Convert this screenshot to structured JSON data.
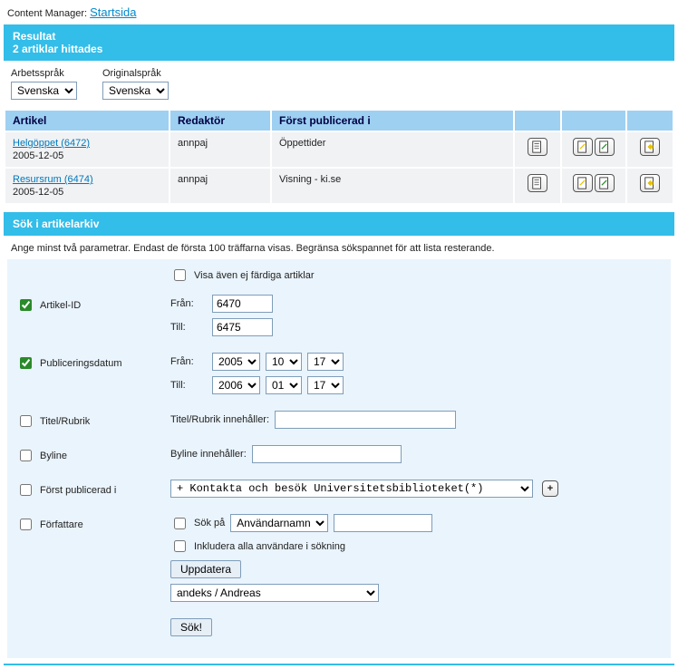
{
  "breadcrumb": {
    "prefix": "Content Manager:",
    "link": "Startsida"
  },
  "result_header": {
    "line1": "Resultat",
    "line2": "2 artiklar hittades"
  },
  "lang": {
    "work_label": "Arbetsspråk",
    "orig_label": "Originalspråk",
    "work_value": "Svenska",
    "orig_value": "Svenska"
  },
  "table": {
    "headers": {
      "artikel": "Artikel",
      "redaktor": "Redaktör",
      "forst_pub": "Först publicerad i",
      "actions1": "",
      "actions2": "",
      "actions3": ""
    },
    "rows": [
      {
        "link": "Helgöppet (6472)",
        "date": "2005-12-05",
        "editor": "annpaj",
        "pub": "Öppettider"
      },
      {
        "link": "Resursrum (6474)",
        "date": "2005-12-05",
        "editor": "annpaj",
        "pub": "Visning - ki.se"
      }
    ]
  },
  "search_header": "Sök i artikelarkiv",
  "help_text": "Ange minst två parametrar. Endast de första 100 träffarna visas. Begränsa sökspannet för att lista resterande.",
  "form": {
    "show_unfinished": "Visa även ej färdiga artiklar",
    "artikel_id_label": "Artikel-ID",
    "from_label": "Från:",
    "to_label": "Till:",
    "id_from": "6470",
    "id_to": "6475",
    "pubdate_label": "Publiceringsdatum",
    "date_from_y": "2005",
    "date_from_m": "10",
    "date_from_d": "17",
    "date_to_y": "2006",
    "date_to_m": "01",
    "date_to_d": "17",
    "titel_label": "Titel/Rubrik",
    "titel_field_label": "Titel/Rubrik innehåller:",
    "byline_label": "Byline",
    "byline_field_label": "Byline innehåller:",
    "forst_pub_label": "Först publicerad i",
    "dropdown_value": " + Kontakta och besök Universitetsbiblioteket(*)",
    "forfattare_label": "Författare",
    "sok_pa": "Sök på",
    "sok_pa_option": "Användarnamn",
    "include_all": "Inkludera alla användare i sökning",
    "update_btn": "Uppdatera",
    "user_value": "andeks / Andreas",
    "submit": "Sök!"
  }
}
